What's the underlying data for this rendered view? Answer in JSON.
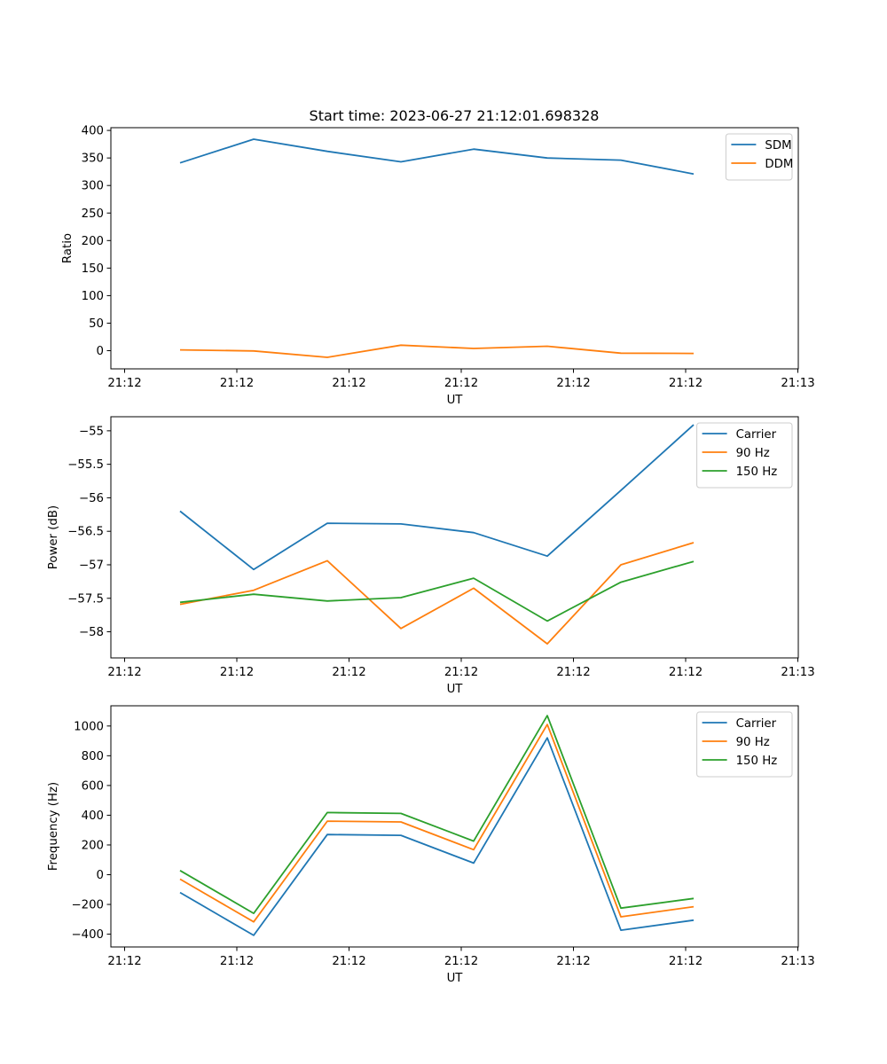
{
  "figure": {
    "title": "Start time: 2023-06-27 21:12:01.698328"
  },
  "chart_data": [
    {
      "type": "line",
      "xlabel": "UT",
      "ylabel": "Ratio",
      "x_ticks": [
        "21:12",
        "21:12",
        "21:12",
        "21:12",
        "21:12",
        "21:12",
        "21:13"
      ],
      "y_ticks": [
        0,
        50,
        100,
        150,
        200,
        250,
        300,
        350,
        400
      ],
      "ylim": [
        -33,
        405
      ],
      "grid": false,
      "legend_position": "top-right",
      "series": [
        {
          "name": "SDM",
          "color": "#1f77b4",
          "values": [
            341,
            384,
            362,
            343,
            366,
            350,
            346,
            321
          ]
        },
        {
          "name": "DDM",
          "color": "#ff7f0e",
          "values": [
            1.5,
            -0.5,
            -12,
            10,
            4,
            8,
            -4.5,
            -5
          ]
        }
      ]
    },
    {
      "type": "line",
      "xlabel": "UT",
      "ylabel": "Power (dB)",
      "x_ticks": [
        "21:12",
        "21:12",
        "21:12",
        "21:12",
        "21:12",
        "21:12",
        "21:13"
      ],
      "y_ticks": [
        -55.0,
        -55.5,
        -56.0,
        -56.5,
        -57.0,
        -57.5,
        -58.0
      ],
      "ylim": [
        -58.39,
        -54.79
      ],
      "grid": false,
      "legend_position": "top-right",
      "series": [
        {
          "name": "Carrier",
          "color": "#1f77b4",
          "values": [
            -56.2,
            -57.07,
            -56.38,
            -56.39,
            -56.52,
            -56.87,
            -55.89,
            -54.91
          ]
        },
        {
          "name": "90 Hz",
          "color": "#ff7f0e",
          "values": [
            -57.59,
            -57.38,
            -56.94,
            -57.95,
            -57.35,
            -58.18,
            -57.0,
            -56.67
          ]
        },
        {
          "name": "150 Hz",
          "color": "#2ca02c",
          "values": [
            -57.56,
            -57.44,
            -57.54,
            -57.49,
            -57.2,
            -57.84,
            -57.26,
            -56.95
          ]
        }
      ]
    },
    {
      "type": "line",
      "xlabel": "UT",
      "ylabel": "Frequency (Hz)",
      "x_ticks": [
        "21:12",
        "21:12",
        "21:12",
        "21:12",
        "21:12",
        "21:12",
        "21:13"
      ],
      "y_ticks": [
        -400,
        -200,
        0,
        200,
        400,
        600,
        800,
        1000
      ],
      "ylim": [
        -486,
        1136
      ],
      "grid": false,
      "legend_position": "top-right",
      "series": [
        {
          "name": "Carrier",
          "color": "#1f77b4",
          "values": [
            -120,
            -408,
            270,
            265,
            78,
            920,
            -373,
            -306
          ]
        },
        {
          "name": "90 Hz",
          "color": "#ff7f0e",
          "values": [
            -30,
            -317,
            360,
            355,
            168,
            1010,
            -283,
            -215
          ]
        },
        {
          "name": "150 Hz",
          "color": "#2ca02c",
          "values": [
            28,
            -260,
            418,
            412,
            226,
            1070,
            -225,
            -160
          ]
        }
      ]
    }
  ]
}
